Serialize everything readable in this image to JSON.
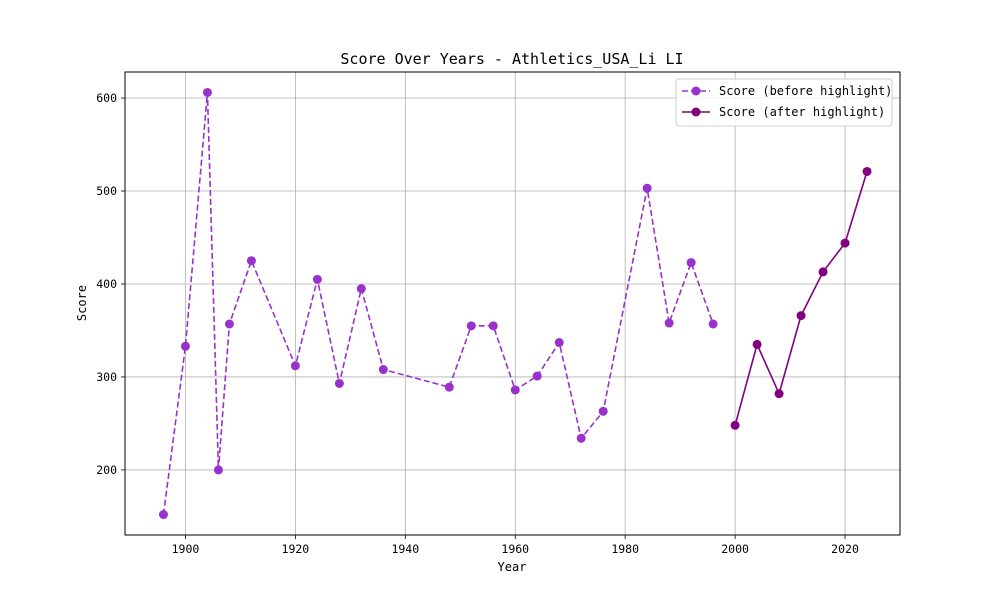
{
  "chart_data": {
    "type": "line",
    "title": "Score Over Years - Athletics_USA_Li LI",
    "xlabel": "Year",
    "ylabel": "Score",
    "xlim": [
      1889,
      2030
    ],
    "ylim": [
      130,
      628
    ],
    "xticks": [
      1900,
      1920,
      1940,
      1960,
      1980,
      2000,
      2020
    ],
    "yticks": [
      200,
      300,
      400,
      500,
      600
    ],
    "grid": true,
    "legend_position": "top-right",
    "series": [
      {
        "name": "Score (before highlight)",
        "color": "#9932CC",
        "style": "dashed",
        "marker": "circle",
        "x": [
          1896,
          1900,
          1904,
          1906,
          1908,
          1912,
          1920,
          1924,
          1928,
          1932,
          1936,
          1948,
          1952,
          1956,
          1960,
          1964,
          1968,
          1972,
          1976,
          1984,
          1988,
          1992,
          1996
        ],
        "y": [
          152,
          333,
          606,
          200,
          357,
          425,
          312,
          405,
          293,
          395,
          308,
          289,
          355,
          355,
          286,
          301,
          337,
          234,
          263,
          503,
          358,
          423,
          357
        ]
      },
      {
        "name": "Score (after highlight)",
        "color": "#800080",
        "style": "solid",
        "marker": "circle",
        "x": [
          2000,
          2004,
          2008,
          2012,
          2016,
          2020,
          2024
        ],
        "y": [
          248,
          335,
          282,
          366,
          413,
          444,
          521
        ]
      }
    ]
  }
}
